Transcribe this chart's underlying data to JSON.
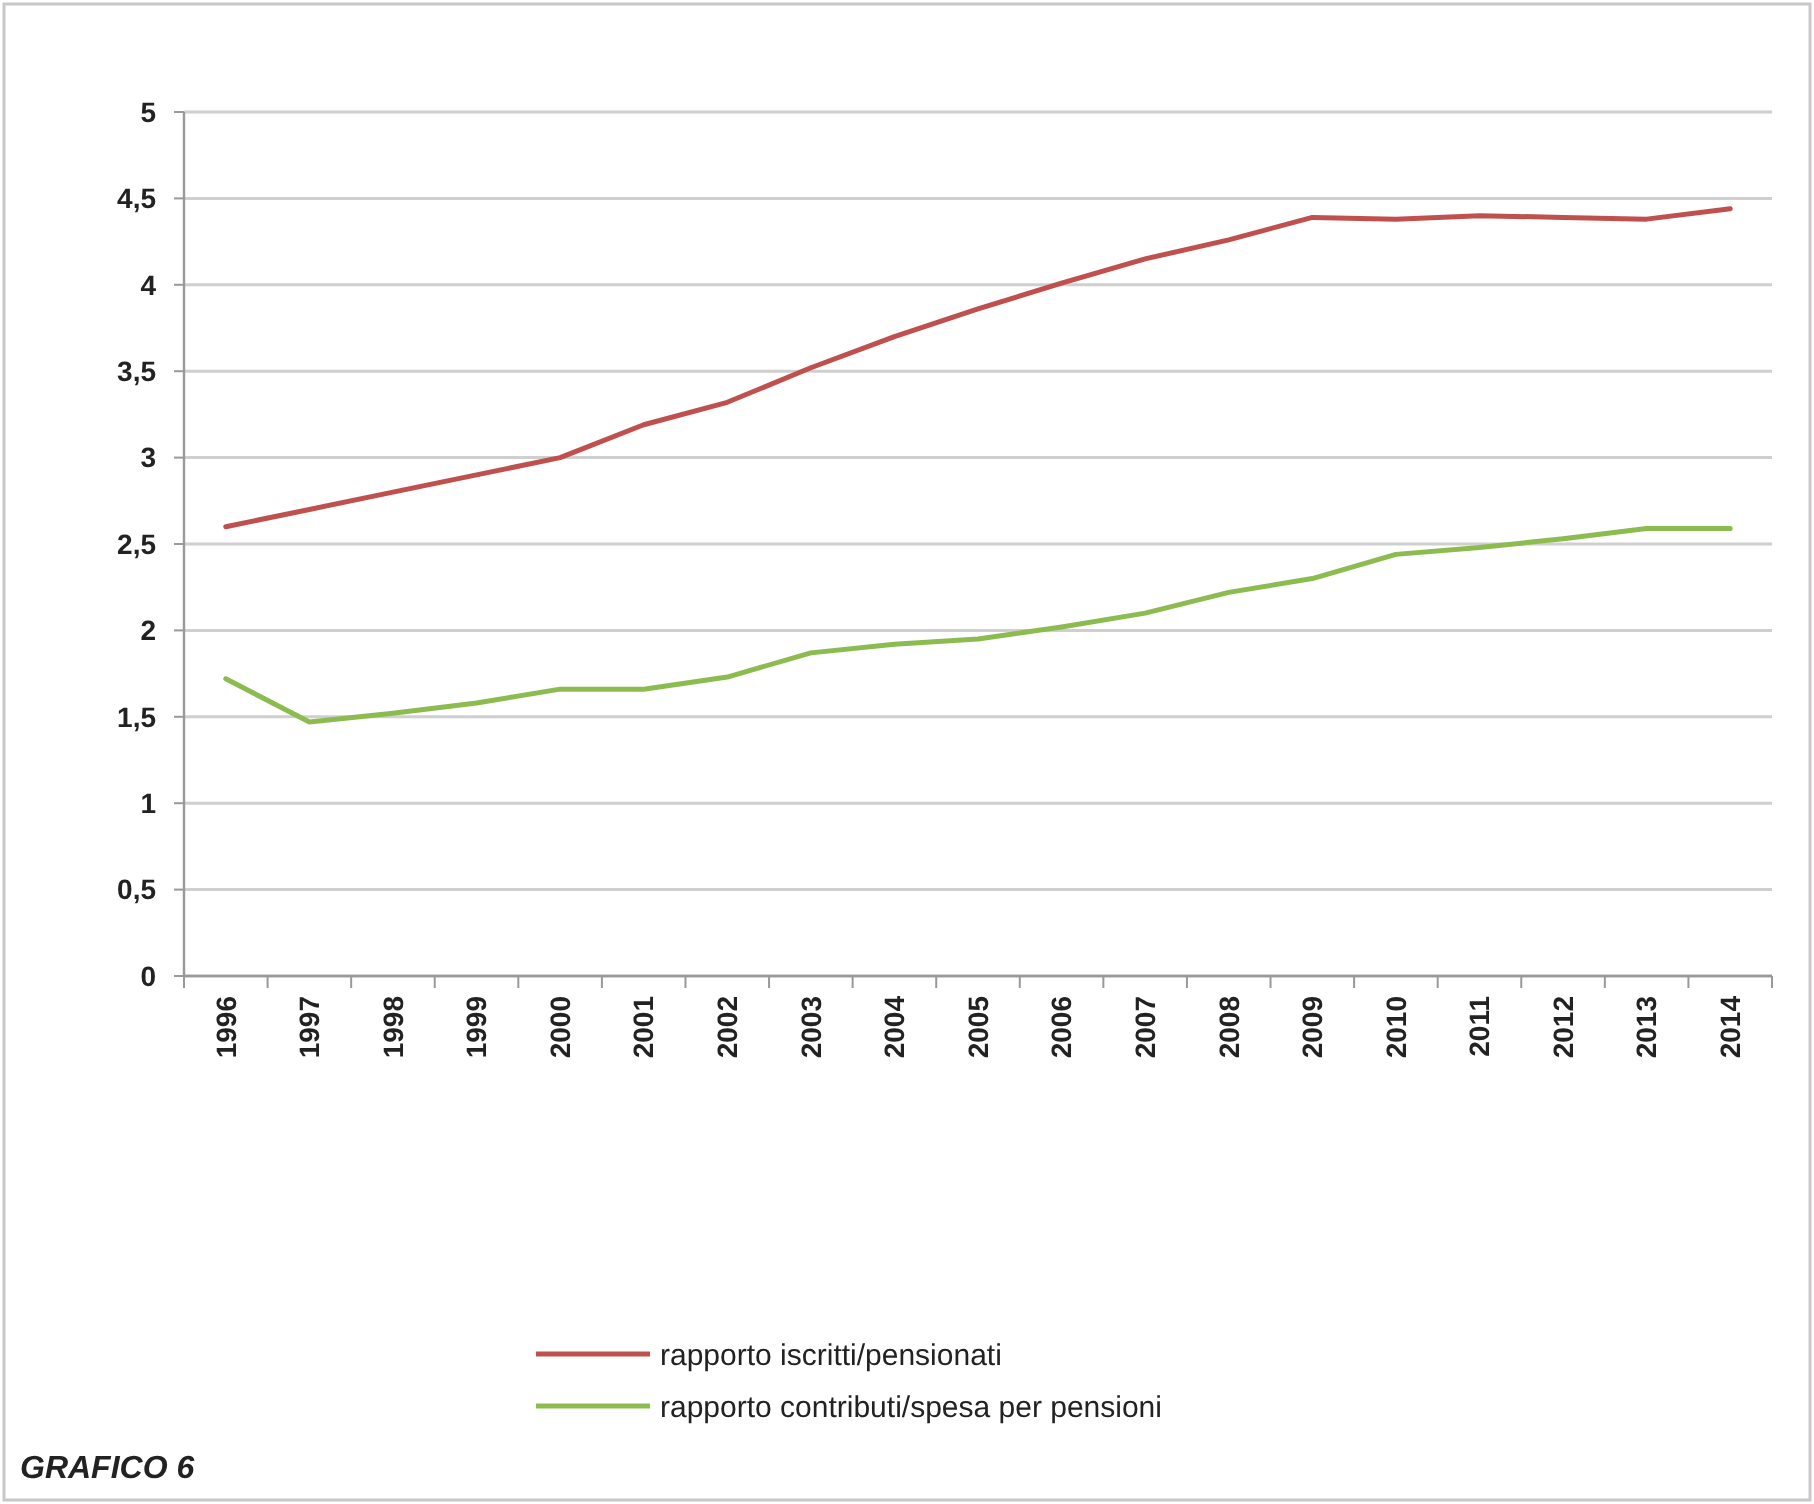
{
  "chart_data": {
    "type": "line",
    "categories": [
      "1996",
      "1997",
      "1998",
      "1999",
      "2000",
      "2001",
      "2002",
      "2003",
      "2004",
      "2005",
      "2006",
      "2007",
      "2008",
      "2009",
      "2010",
      "2011",
      "2012",
      "2013",
      "2014"
    ],
    "series": [
      {
        "name": "rapporto iscritti/pensionati",
        "color": "#c0504d",
        "values": [
          2.6,
          2.7,
          2.8,
          2.9,
          3.0,
          3.19,
          3.32,
          3.52,
          3.7,
          3.86,
          4.01,
          4.15,
          4.26,
          4.39,
          4.38,
          4.4,
          4.39,
          4.38,
          4.44
        ]
      },
      {
        "name": "rapporto contributi/spesa per pensioni",
        "color": "#8cbc4f",
        "values": [
          1.72,
          1.47,
          1.52,
          1.58,
          1.66,
          1.66,
          1.73,
          1.87,
          1.92,
          1.95,
          2.02,
          2.1,
          2.22,
          2.3,
          2.44,
          2.48,
          2.53,
          2.59,
          2.59
        ]
      }
    ],
    "ylim": [
      0,
      5
    ],
    "yticks": [
      0,
      {
        "value": 0.5,
        "label": "0,5"
      },
      1,
      {
        "value": 1.5,
        "label": "1,5"
      },
      2,
      {
        "value": 2.5,
        "label": "2,5"
      },
      3,
      {
        "value": 3.5,
        "label": "3,5"
      },
      4,
      {
        "value": 4.5,
        "label": "4,5"
      },
      5
    ],
    "grid": "y",
    "legend": "bottom",
    "marker": "none",
    "line_style": "solid",
    "annotations": [
      "GRAFICO 6"
    ]
  }
}
